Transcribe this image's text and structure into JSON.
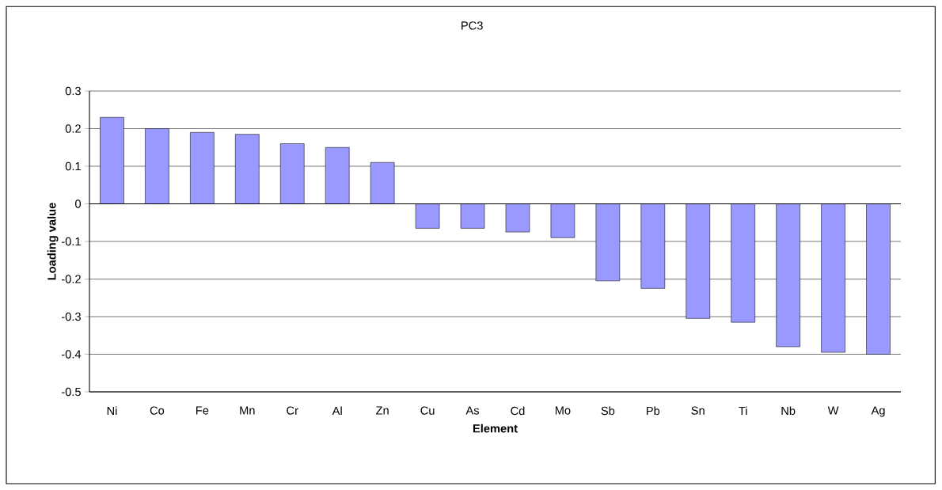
{
  "chart_data": {
    "type": "bar",
    "title": "PC3",
    "xlabel": "Element",
    "ylabel": "Loading value",
    "categories": [
      "Ni",
      "Co",
      "Fe",
      "Mn",
      "Cr",
      "Al",
      "Zn",
      "Cu",
      "As",
      "Cd",
      "Mo",
      "Sb",
      "Pb",
      "Sn",
      "Ti",
      "Nb",
      "W",
      "Ag"
    ],
    "values": [
      0.23,
      0.2,
      0.19,
      0.185,
      0.16,
      0.15,
      0.11,
      -0.065,
      -0.065,
      -0.075,
      -0.09,
      -0.205,
      -0.225,
      -0.305,
      -0.315,
      -0.38,
      -0.395,
      -0.4
    ],
    "color": "#9999ff",
    "ylim": [
      -0.5,
      0.3
    ],
    "yticks": [
      -0.5,
      -0.4,
      -0.3,
      -0.2,
      -0.1,
      0,
      0.1,
      0.2,
      0.3
    ],
    "grid": "y"
  }
}
